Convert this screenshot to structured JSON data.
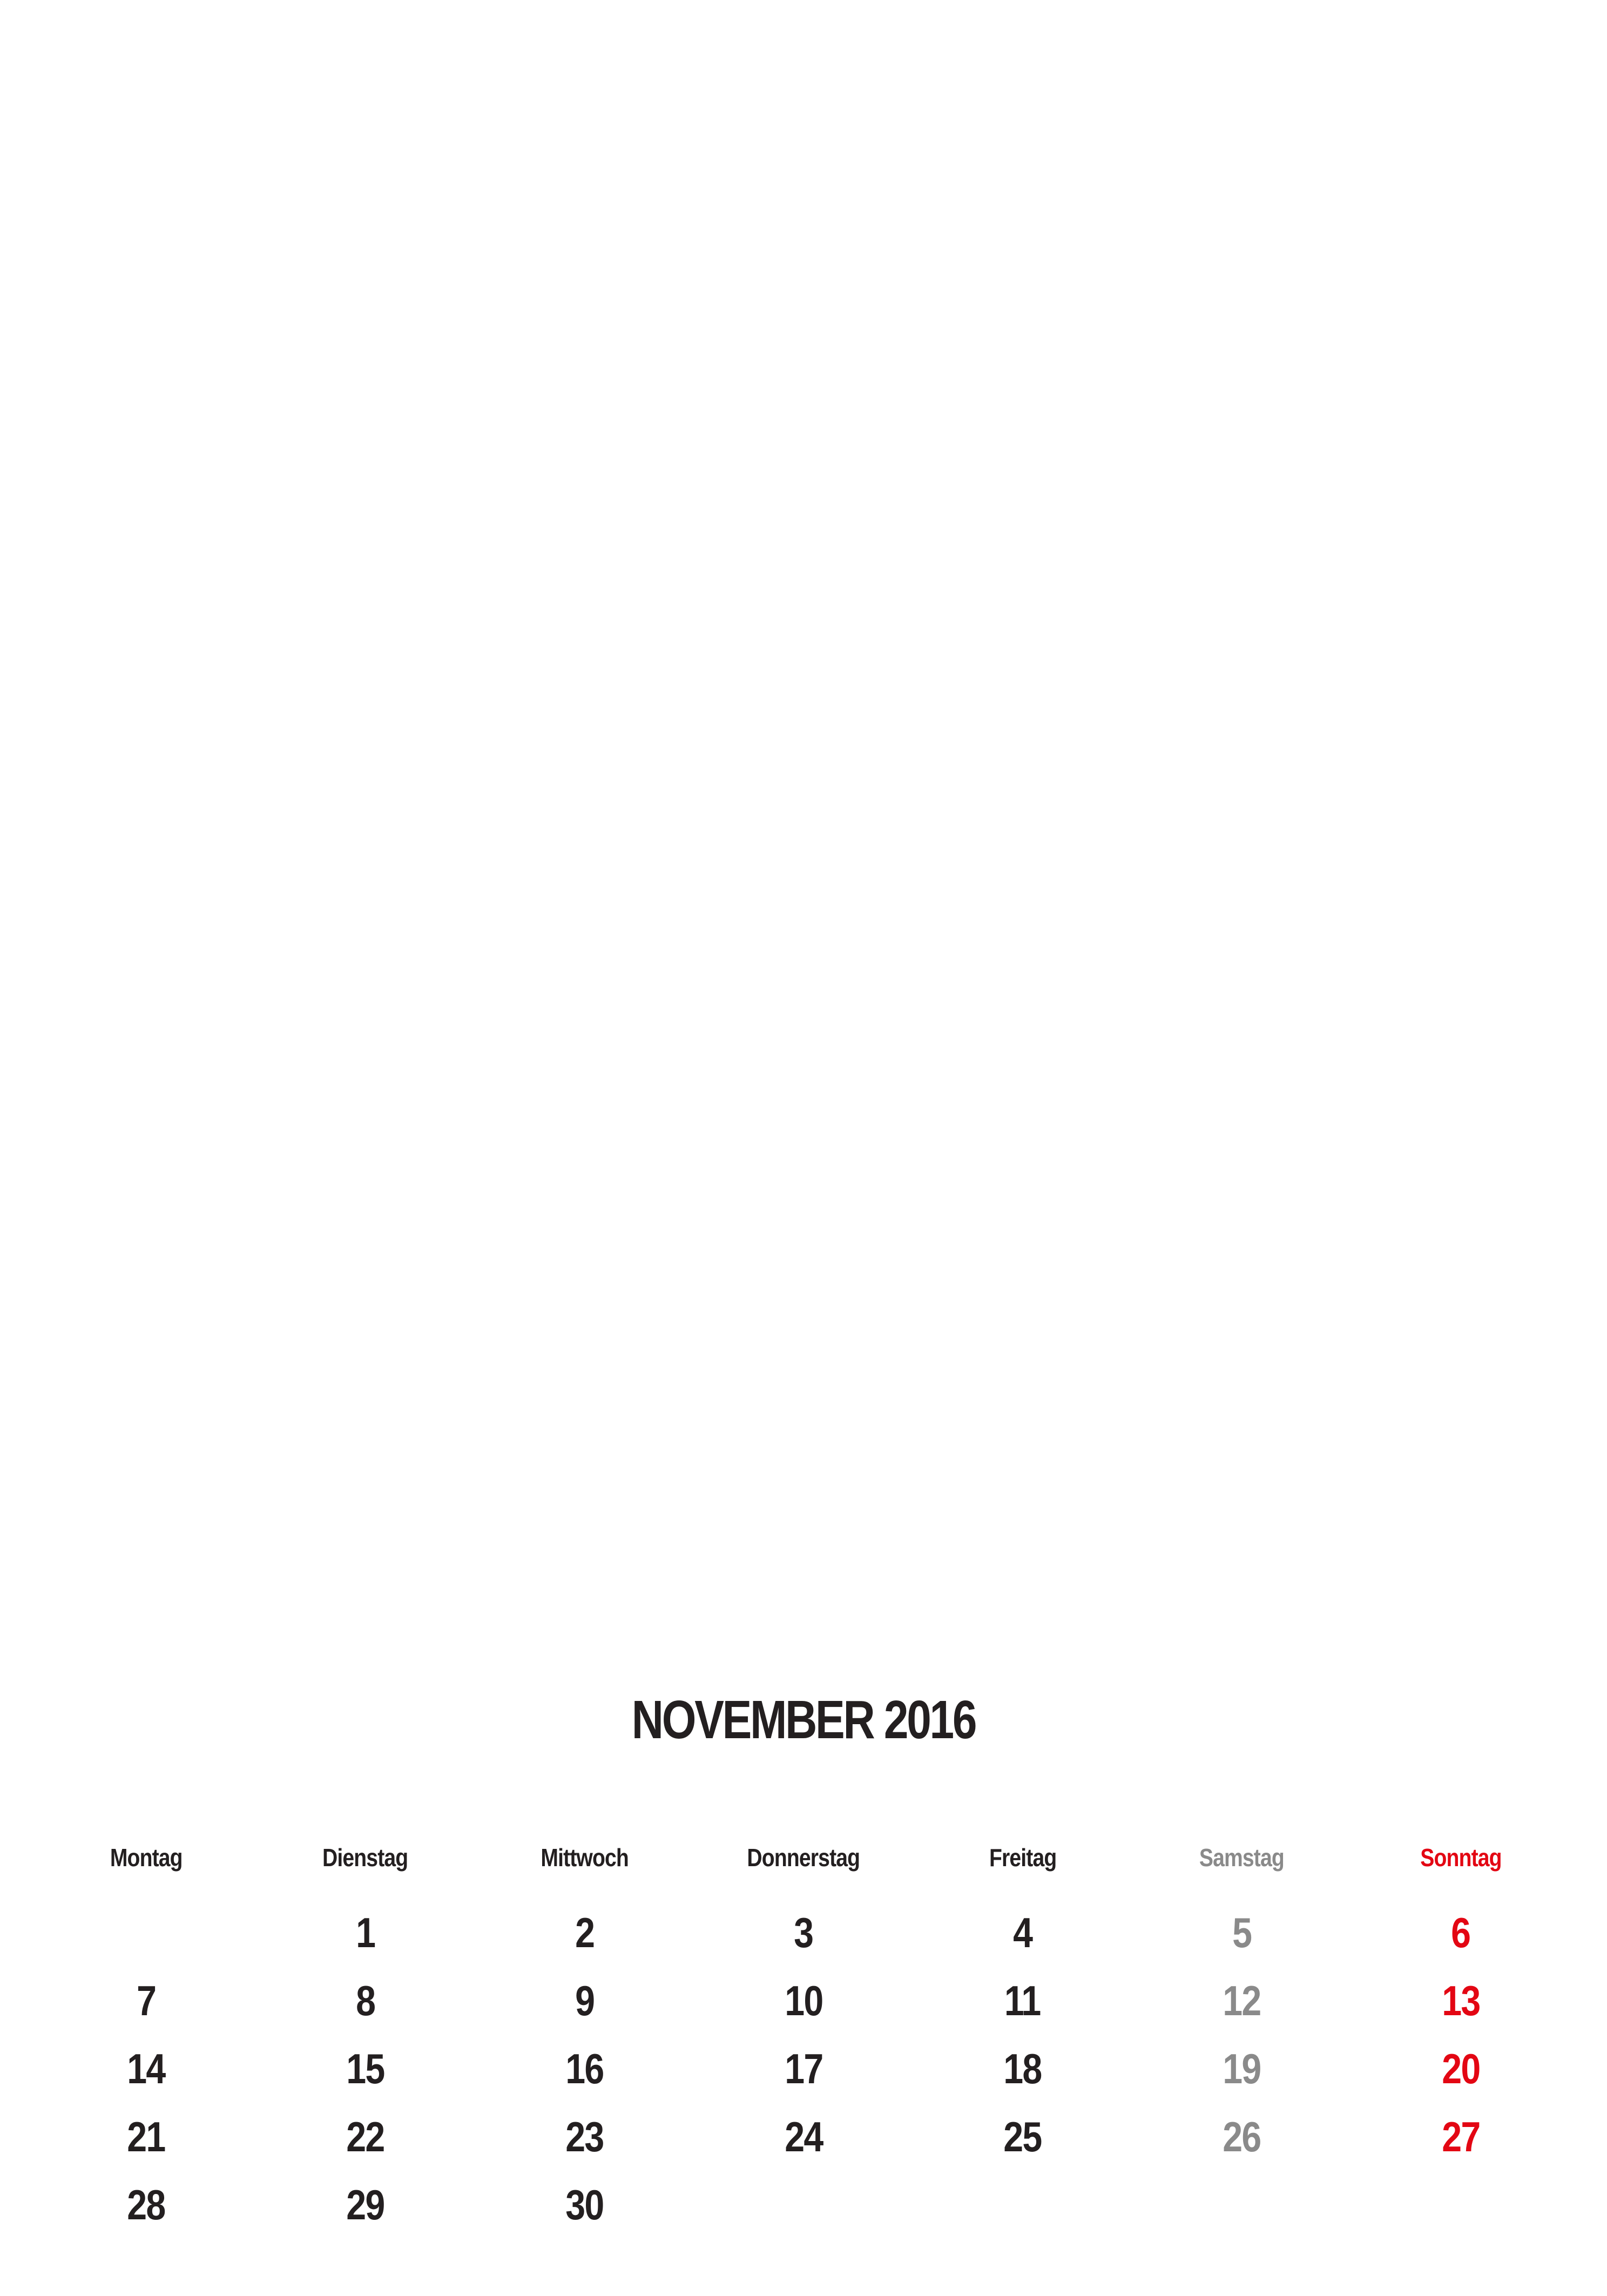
{
  "calendar": {
    "title": "NOVEMBER 2016",
    "weekdays": [
      "Montag",
      "Dienstag",
      "Mittwoch",
      "Donnerstag",
      "Freitag",
      "Samstag",
      "Sonntag"
    ],
    "weeks": [
      [
        "",
        "1",
        "2",
        "3",
        "4",
        "5",
        "6"
      ],
      [
        "7",
        "8",
        "9",
        "10",
        "11",
        "12",
        "13"
      ],
      [
        "14",
        "15",
        "16",
        "17",
        "18",
        "19",
        "20"
      ],
      [
        "21",
        "22",
        "23",
        "24",
        "25",
        "26",
        "27"
      ],
      [
        "28",
        "29",
        "30",
        "",
        "",
        "",
        ""
      ]
    ],
    "colors": {
      "text": "#231f20",
      "saturday": "#8a8a8a",
      "sunday": "#e30613"
    }
  }
}
